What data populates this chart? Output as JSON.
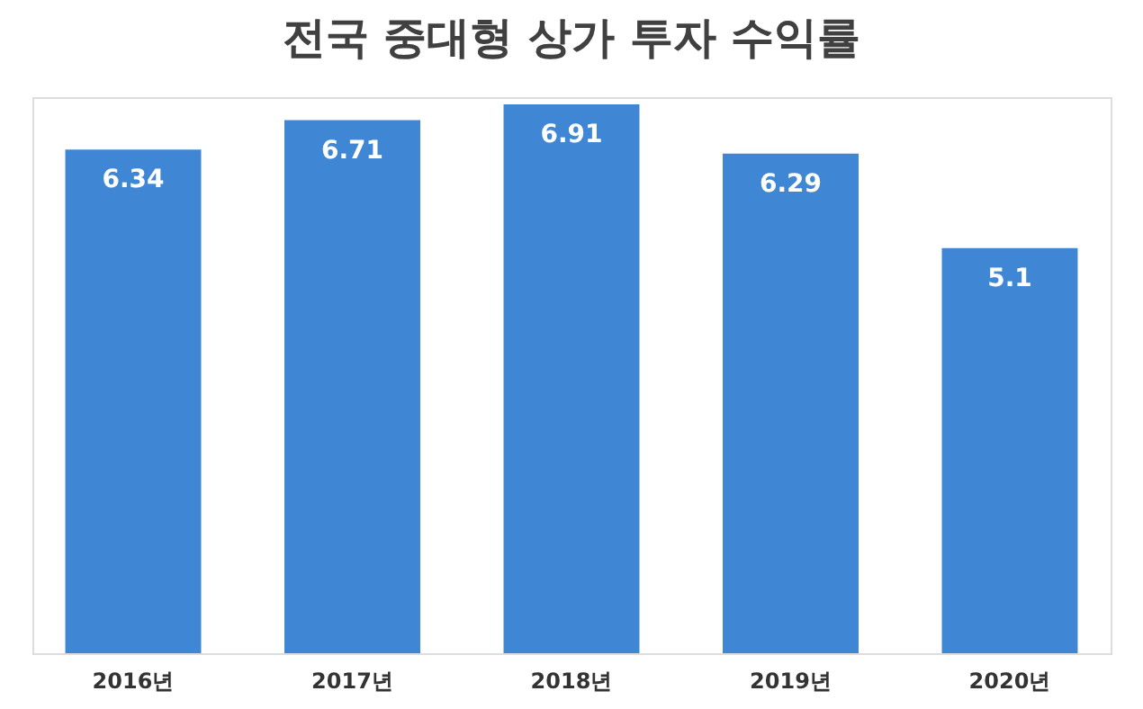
{
  "chart_data": {
    "type": "bar",
    "title": "전국 중대형 상가 투자 수익률",
    "categories": [
      "2016년",
      "2017년",
      "2018년",
      "2019년",
      "2020년"
    ],
    "values": [
      6.34,
      6.71,
      6.91,
      6.29,
      5.1
    ],
    "color": "#3f86d4",
    "data_labels": true
  }
}
